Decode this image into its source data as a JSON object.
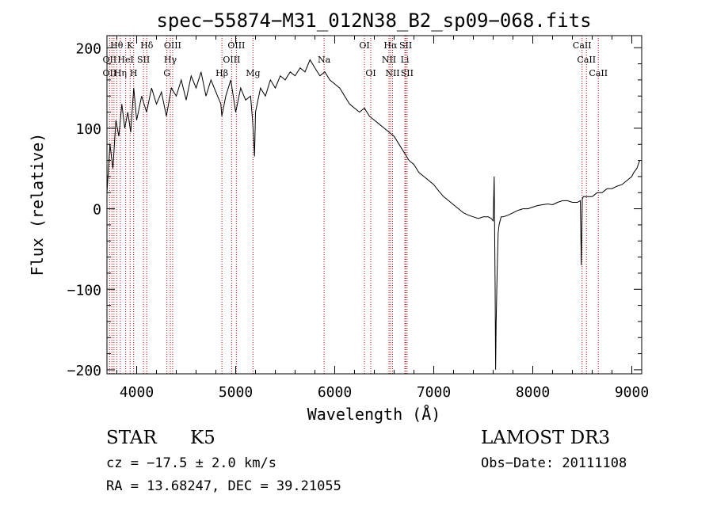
{
  "chart_data": {
    "type": "line",
    "title": "spec−55874−M31_012N38_B2_sp09−068.fits",
    "xlabel": "Wavelength (Å)",
    "ylabel": "Flux (relative)",
    "xlim": [
      3700,
      9100
    ],
    "ylim": [
      -205,
      215
    ],
    "x_ticks": [
      4000,
      5000,
      6000,
      7000,
      8000,
      9000
    ],
    "y_ticks": [
      -200,
      -100,
      0,
      100,
      200
    ],
    "y_tick_labels": [
      "−200",
      "−100",
      "0",
      "100",
      "200"
    ],
    "grid": false,
    "series": [
      {
        "name": "Flux",
        "x": [
          3700,
          3730,
          3760,
          3790,
          3820,
          3850,
          3880,
          3910,
          3940,
          3970,
          4000,
          4050,
          4100,
          4150,
          4200,
          4250,
          4300,
          4350,
          4400,
          4450,
          4500,
          4550,
          4600,
          4650,
          4700,
          4750,
          4800,
          4850,
          4860,
          4900,
          4950,
          5000,
          5050,
          5100,
          5150,
          5170,
          5180,
          5190,
          5200,
          5250,
          5300,
          5350,
          5400,
          5450,
          5500,
          5550,
          5600,
          5650,
          5700,
          5750,
          5800,
          5850,
          5900,
          5950,
          6000,
          6050,
          6100,
          6150,
          6200,
          6250,
          6300,
          6350,
          6400,
          6450,
          6500,
          6550,
          6600,
          6650,
          6700,
          6750,
          6800,
          6850,
          6900,
          6950,
          7000,
          7050,
          7100,
          7150,
          7200,
          7250,
          7300,
          7350,
          7400,
          7450,
          7500,
          7550,
          7580,
          7600,
          7610,
          7620,
          7625,
          7630,
          7640,
          7650,
          7660,
          7670,
          7680,
          7700,
          7750,
          7800,
          7850,
          7900,
          7950,
          8000,
          8050,
          8100,
          8150,
          8200,
          8250,
          8300,
          8350,
          8400,
          8450,
          8480,
          8490,
          8500,
          8510,
          8550,
          8600,
          8650,
          8700,
          8750,
          8800,
          8850,
          8900,
          8950,
          9000,
          9020,
          9050,
          9080
        ],
        "y": [
          20,
          80,
          50,
          110,
          90,
          130,
          100,
          120,
          95,
          150,
          110,
          140,
          120,
          150,
          130,
          145,
          115,
          150,
          140,
          160,
          135,
          165,
          150,
          170,
          140,
          160,
          145,
          130,
          115,
          140,
          160,
          120,
          150,
          135,
          140,
          110,
          90,
          65,
          120,
          150,
          140,
          160,
          150,
          165,
          160,
          170,
          165,
          175,
          170,
          185,
          175,
          165,
          170,
          160,
          155,
          150,
          140,
          130,
          125,
          120,
          125,
          115,
          110,
          105,
          100,
          95,
          90,
          80,
          70,
          60,
          55,
          45,
          40,
          35,
          30,
          22,
          15,
          10,
          5,
          0,
          -5,
          -8,
          -10,
          -12,
          -10,
          -10,
          -12,
          -15,
          40,
          -100,
          -200,
          -140,
          -80,
          -30,
          -20,
          -15,
          -10,
          -10,
          -8,
          -5,
          -2,
          0,
          0,
          2,
          4,
          5,
          6,
          5,
          8,
          10,
          10,
          8,
          8,
          10,
          -70,
          12,
          15,
          15,
          15,
          20,
          20,
          25,
          25,
          28,
          30,
          35,
          40,
          45,
          50,
          60
        ]
      }
    ],
    "line_annotations": [
      {
        "label": "Hθ",
        "x": 3798,
        "row": 0
      },
      {
        "label": "K",
        "x": 3934,
        "row": 0
      },
      {
        "label": "Hδ",
        "x": 4102,
        "row": 0
      },
      {
        "label": "OIII",
        "x": 4363,
        "row": 0
      },
      {
        "label": "OIII",
        "x": 5007,
        "row": 0
      },
      {
        "label": "OI",
        "x": 6300,
        "row": 0
      },
      {
        "label": "Hα",
        "x": 6563,
        "row": 0
      },
      {
        "label": "SII",
        "x": 6717,
        "row": 0
      },
      {
        "label": "CaII",
        "x": 8498,
        "row": 0
      },
      {
        "label": "OII",
        "x": 3727,
        "row": 1
      },
      {
        "label": "HeI",
        "x": 3889,
        "row": 1
      },
      {
        "label": "SII",
        "x": 4069,
        "row": 1
      },
      {
        "label": "Hγ",
        "x": 4340,
        "row": 1
      },
      {
        "label": "OIII",
        "x": 4959,
        "row": 1
      },
      {
        "label": "Na",
        "x": 5893,
        "row": 1
      },
      {
        "label": "NII",
        "x": 6548,
        "row": 1
      },
      {
        "label": "Li",
        "x": 6708,
        "row": 1
      },
      {
        "label": "CaII",
        "x": 8542,
        "row": 1
      },
      {
        "label": "OII",
        "x": 3727,
        "row": 2
      },
      {
        "label": "Hη",
        "x": 3835,
        "row": 2
      },
      {
        "label": "H",
        "x": 3969,
        "row": 2
      },
      {
        "label": "G",
        "x": 4305,
        "row": 2
      },
      {
        "label": "Hβ",
        "x": 4861,
        "row": 2
      },
      {
        "label": "Mg",
        "x": 5175,
        "row": 2
      },
      {
        "label": "OI",
        "x": 6364,
        "row": 2
      },
      {
        "label": "NII",
        "x": 6584,
        "row": 2
      },
      {
        "label": "SII",
        "x": 6731,
        "row": 2
      },
      {
        "label": "CaII",
        "x": 8662,
        "row": 2
      }
    ],
    "marker_lines": [
      3727,
      3750,
      3771,
      3798,
      3835,
      3889,
      3934,
      3969,
      4069,
      4102,
      4305,
      4340,
      4363,
      4861,
      4959,
      5007,
      5175,
      5893,
      6300,
      6364,
      6548,
      6563,
      6584,
      6708,
      6717,
      6731,
      8498,
      8542,
      8662
    ]
  },
  "info": {
    "class_label": "STAR",
    "subclass_label": "K5",
    "cz_text": "cz = −17.5 ± 2.0 km/s",
    "coords_text": "RA =  13.68247, DEC =  39.21055",
    "survey_text": "LAMOST DR3",
    "obs_date_text": "Obs−Date: 20111108"
  },
  "colors": {
    "line": "#000000",
    "marker": "#cc0000",
    "axis": "#000000"
  }
}
